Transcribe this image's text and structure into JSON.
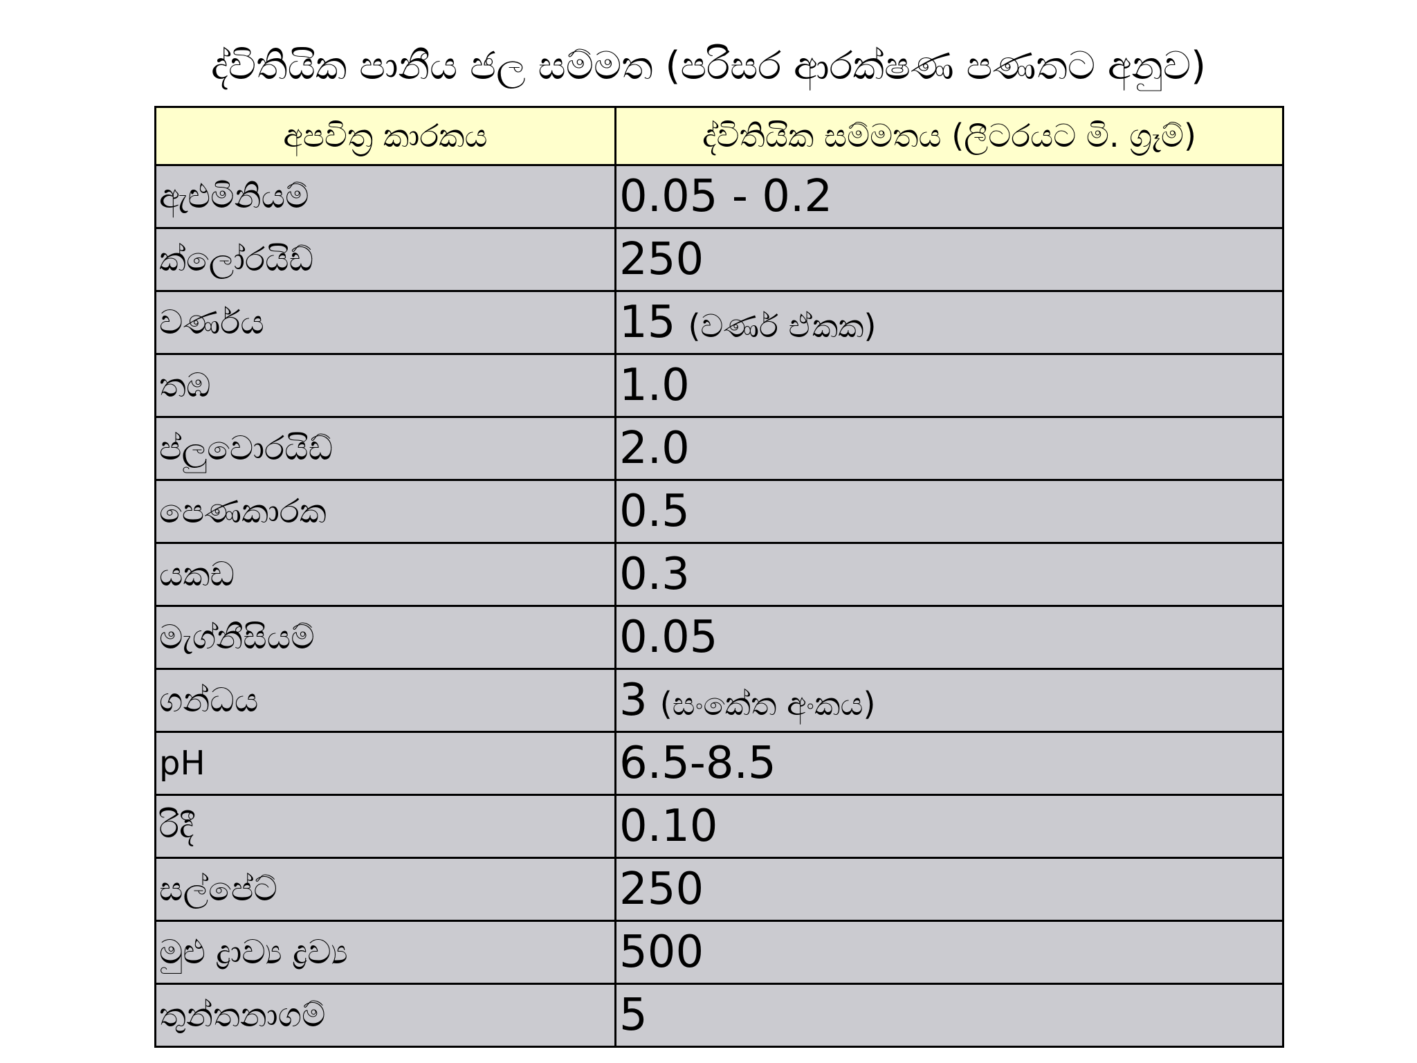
{
  "title": "ද්විතියික පානීය ජල සම්මත (පරිසර ආරක්ෂණ පණතට අනුව)",
  "table": {
    "headers": [
      "අපවිත්‍ර කාරකය",
      "ද්විතියික සම්මතය (ලීටරයට මි. ග්‍රෑම්)"
    ],
    "rows": [
      {
        "name": "ඇළුමිනියම්",
        "value": "0.05 - 0.2",
        "note": ""
      },
      {
        "name": "ක්ලෝරයිඩ්",
        "value": "250",
        "note": ""
      },
      {
        "name": "වර්ණය",
        "value": "15",
        "note": "(වර්ණ ඒකක)"
      },
      {
        "name": "තඹ",
        "value": "1.0",
        "note": ""
      },
      {
        "name": "ප්ලුවොරයිඩ්",
        "value": "2.0",
        "note": ""
      },
      {
        "name": "පෙණකාරක",
        "value": "0.5",
        "note": ""
      },
      {
        "name": "යකඩ",
        "value": "0.3",
        "note": ""
      },
      {
        "name": "මැග්නීසියම්",
        "value": "0.05",
        "note": ""
      },
      {
        "name": "ගන්ධය",
        "value": "3",
        "note": "(සංකේත අංකය)"
      },
      {
        "name": "pH",
        "value": "6.5-8.5",
        "note": ""
      },
      {
        "name": "රිදී",
        "value": "0.10",
        "note": ""
      },
      {
        "name": "සල්පේට්",
        "value": "250",
        "note": ""
      },
      {
        "name": "මුළු ද්‍රාව්‍ය ද්‍රව්‍ය",
        "value": "500",
        "note": ""
      },
      {
        "name": "තුන්තනාගම්",
        "value": "5",
        "note": ""
      }
    ]
  },
  "colors": {
    "header_bg": "#ffffcc",
    "row_bg": "#cbcbd0",
    "border": "#000000"
  }
}
